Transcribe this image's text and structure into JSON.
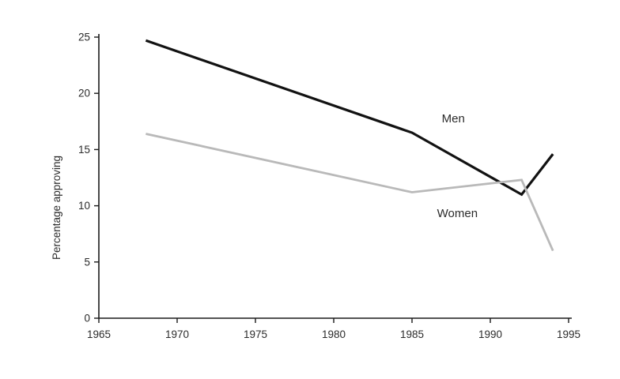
{
  "chart_data": {
    "type": "line",
    "title": "",
    "xlabel": "",
    "ylabel": "Percentage approving",
    "xlim": [
      1965,
      1995
    ],
    "ylim": [
      0,
      25
    ],
    "x_ticks": [
      1965,
      1970,
      1975,
      1980,
      1985,
      1990,
      1995
    ],
    "y_ticks": [
      0,
      5,
      10,
      15,
      20,
      25
    ],
    "grid": false,
    "legend": "inline-labels",
    "series": [
      {
        "name": "Men",
        "color": "#121212",
        "stroke_width": 3.2,
        "x": [
          1968,
          1985,
          1992,
          1994
        ],
        "values": [
          24.7,
          16.5,
          11.0,
          14.6
        ],
        "label": "Men",
        "label_x": 1986.9,
        "label_y": 17.4
      },
      {
        "name": "Women",
        "color": "#b9b9b9",
        "stroke_width": 2.8,
        "x": [
          1968,
          1985,
          1992,
          1994
        ],
        "values": [
          16.4,
          11.2,
          12.3,
          6.0
        ],
        "label": "Women",
        "label_x": 1986.6,
        "label_y": 9.0
      }
    ],
    "axis_color": "#1a1a1a",
    "tick_label_color": "#2b2b2b",
    "tick_font_size": 13.5,
    "axis_label_font_size": 13.5,
    "series_label_font_size": 15
  }
}
